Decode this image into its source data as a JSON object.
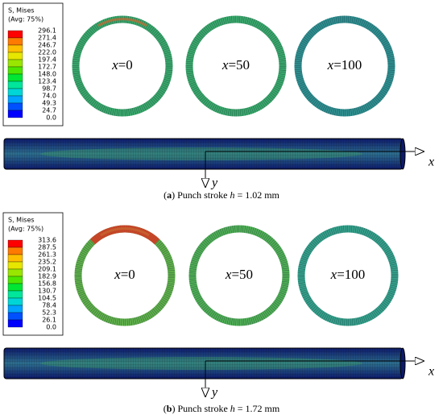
{
  "panels": [
    {
      "legend": {
        "title": "S, Mises",
        "subtitle": "(Avg: 75%)",
        "values": [
          "296.1",
          "271.4",
          "246.7",
          "222.0",
          "197.4",
          "172.7",
          "148.0",
          "123.4",
          "98.7",
          "74.0",
          "49.3",
          "24.7",
          "0.0"
        ]
      },
      "rings": [
        {
          "var": "x",
          "eq": "=0"
        },
        {
          "var": "x",
          "eq": "=50"
        },
        {
          "var": "x",
          "eq": "=100"
        }
      ],
      "x_axis": "x",
      "y_axis": "y",
      "caption": {
        "label": "a",
        "prefix": "Punch stroke",
        "var": "h",
        "suffix": "= 1.02 mm"
      }
    },
    {
      "legend": {
        "title": "S, Mises",
        "subtitle": "(Avg: 75%)",
        "values": [
          "313.6",
          "287.5",
          "261.3",
          "235.2",
          "209.1",
          "182.9",
          "156.8",
          "130.7",
          "104.5",
          "78.4",
          "52.3",
          "26.1",
          "0.0"
        ]
      },
      "rings": [
        {
          "var": "x",
          "eq": "=0"
        },
        {
          "var": "x",
          "eq": "=50"
        },
        {
          "var": "x",
          "eq": "=100"
        }
      ],
      "x_axis": "x",
      "y_axis": "y",
      "caption": {
        "label": "b",
        "prefix": "Punch stroke",
        "var": "h",
        "suffix": "= 1.72 mm"
      }
    }
  ]
}
